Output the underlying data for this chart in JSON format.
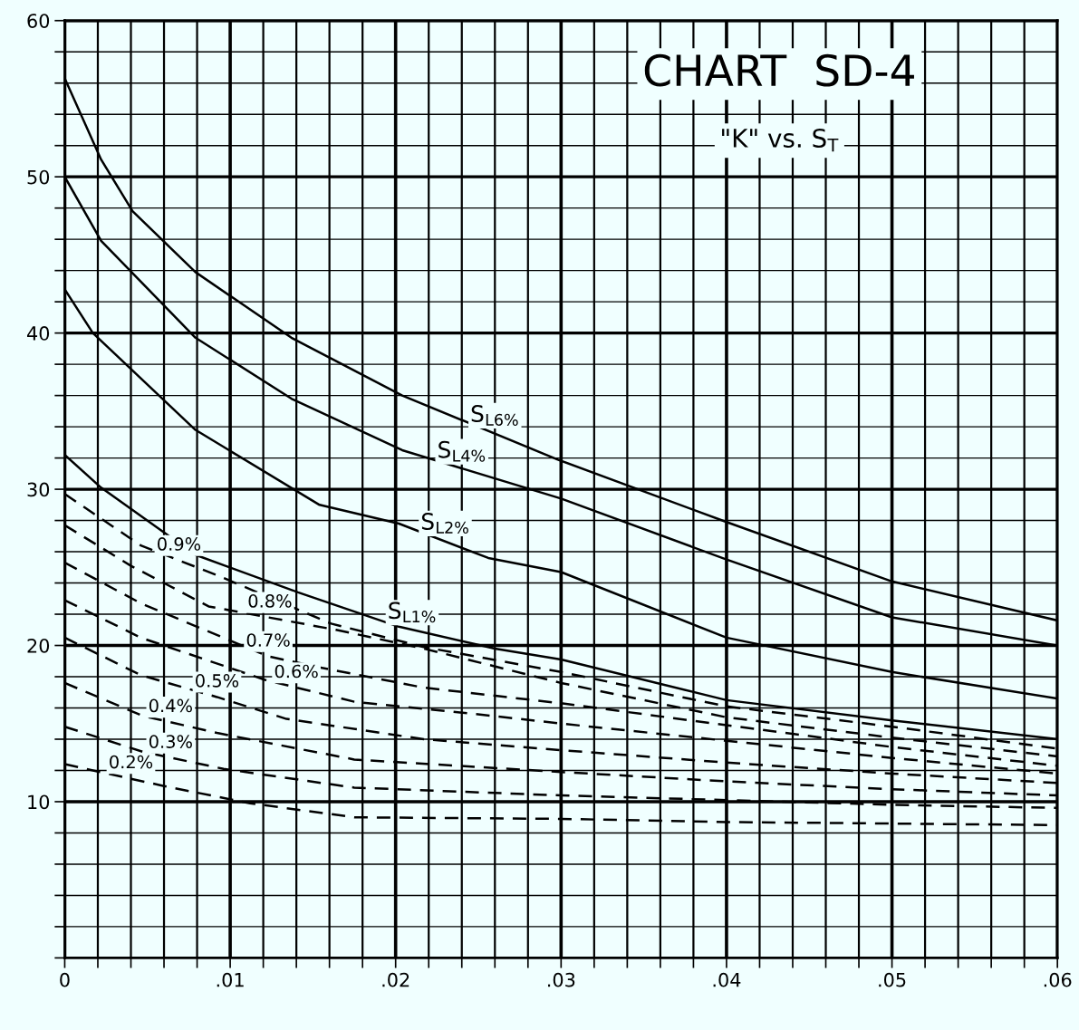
{
  "chart_data": {
    "type": "line",
    "title": "CHART  SD-4",
    "subtitle": "\"K\" vs. S$_{T}$",
    "grid": true,
    "marker": "none",
    "xlim": [
      0,
      0.06
    ],
    "ylim": [
      0,
      60
    ],
    "xticks": [
      0,
      {
        "value": 0.002,
        "label": null
      },
      {
        "value": 0.004,
        "label": null
      },
      {
        "value": 0.006,
        "label": null
      },
      {
        "value": 0.008,
        "label": null
      },
      {
        "value": 0.01,
        "label": ".01"
      },
      {
        "value": 0.012,
        "label": null
      },
      {
        "value": 0.014,
        "label": null
      },
      {
        "value": 0.016,
        "label": null
      },
      {
        "value": 0.018,
        "label": null
      },
      {
        "value": 0.02,
        "label": ".02"
      },
      {
        "value": 0.022,
        "label": null
      },
      {
        "value": 0.024,
        "label": null
      },
      {
        "value": 0.026,
        "label": null
      },
      {
        "value": 0.028,
        "label": null
      },
      {
        "value": 0.03,
        "label": ".03"
      },
      {
        "value": 0.032,
        "label": null
      },
      {
        "value": 0.034,
        "label": null
      },
      {
        "value": 0.036,
        "label": null
      },
      {
        "value": 0.038,
        "label": null
      },
      {
        "value": 0.04,
        "label": ".04"
      },
      {
        "value": 0.042,
        "label": null
      },
      {
        "value": 0.044,
        "label": null
      },
      {
        "value": 0.046,
        "label": null
      },
      {
        "value": 0.048,
        "label": null
      },
      {
        "value": 0.05,
        "label": ".05"
      },
      {
        "value": 0.052,
        "label": null
      },
      {
        "value": 0.054,
        "label": null
      },
      {
        "value": 0.056,
        "label": null
      },
      {
        "value": 0.058,
        "label": null
      },
      {
        "value": 0.06,
        "label": ".06"
      }
    ],
    "yticks": [
      {
        "value": 0,
        "label": null
      },
      {
        "value": 2,
        "label": null
      },
      {
        "value": 4,
        "label": null
      },
      {
        "value": 6,
        "label": null
      },
      {
        "value": 8,
        "label": null
      },
      10,
      {
        "value": 12,
        "label": null
      },
      {
        "value": 14,
        "label": null
      },
      {
        "value": 16,
        "label": null
      },
      {
        "value": 18,
        "label": null
      },
      20,
      {
        "value": 22,
        "label": null
      },
      {
        "value": 24,
        "label": null
      },
      {
        "value": 26,
        "label": null
      },
      {
        "value": 28,
        "label": null
      },
      30,
      {
        "value": 32,
        "label": null
      },
      {
        "value": 34,
        "label": null
      },
      {
        "value": 36,
        "label": null
      },
      {
        "value": 38,
        "label": null
      },
      40,
      {
        "value": 42,
        "label": null
      },
      {
        "value": 44,
        "label": null
      },
      {
        "value": 46,
        "label": null
      },
      {
        "value": 48,
        "label": null
      },
      50,
      {
        "value": 52,
        "label": null
      },
      {
        "value": 54,
        "label": null
      },
      {
        "value": 56,
        "label": null
      },
      {
        "value": 58,
        "label": null
      },
      60
    ],
    "series": [
      {
        "color": "#000000",
        "line_style": "solid",
        "x": [
          0,
          0.0022,
          0.0041,
          0.0079,
          0.0137,
          0.0204,
          0.0298,
          0.04,
          0.05,
          0.06
        ],
        "values": [
          56.3,
          51.1,
          47.8,
          43.9,
          39.7,
          36.0,
          31.9,
          27.9,
          24.1,
          21.6
        ]
      },
      {
        "color": "#000000",
        "line_style": "solid",
        "x": [
          0,
          0.0022,
          0.0079,
          0.0137,
          0.0204,
          0.03,
          0.04,
          0.05,
          0.06
        ],
        "values": [
          50.0,
          45.9,
          39.7,
          35.8,
          32.5,
          29.4,
          25.5,
          21.8,
          20.0
        ]
      },
      {
        "color": "#000000",
        "line_style": "solid",
        "x": [
          0,
          0.0017,
          0.0079,
          0.0154,
          0.0202,
          0.0256,
          0.03,
          0.04,
          0.05,
          0.06
        ],
        "values": [
          42.8,
          40.0,
          33.8,
          29.0,
          27.8,
          25.6,
          24.7,
          20.5,
          18.3,
          16.6
        ]
      },
      {
        "color": "#000000",
        "line_style": "solid",
        "x": [
          0,
          0.0022,
          0.0079,
          0.0141,
          0.0202,
          0.026,
          0.03,
          0.04,
          0.05,
          0.06
        ],
        "values": [
          32.2,
          30.1,
          25.8,
          23.4,
          21.2,
          19.8,
          19.1,
          16.5,
          15.2,
          14.0
        ]
      },
      {
        "color": "#000000",
        "line_style": "dashed",
        "x": [
          0,
          0.0046,
          0.0092,
          0.0161,
          0.0217,
          0.03,
          0.04,
          0.05,
          0.06
        ],
        "values": [
          29.7,
          26.4,
          24.5,
          21.4,
          19.9,
          18.3,
          16.1,
          14.8,
          13.4
        ]
      },
      {
        "color": "#000000",
        "line_style": "dashed",
        "x": [
          0,
          0.004,
          0.0087,
          0.0164,
          0.0217,
          0.03,
          0.04,
          0.05,
          0.06
        ],
        "values": [
          27.7,
          25.1,
          22.5,
          21.0,
          19.8,
          17.6,
          15.4,
          14.1,
          12.9
        ]
      },
      {
        "color": "#000000",
        "line_style": "dashed",
        "x": [
          0,
          0.0046,
          0.0123,
          0.0154,
          0.0217,
          0.03,
          0.04,
          0.05,
          0.06
        ],
        "values": [
          25.3,
          22.7,
          19.3,
          18.6,
          17.3,
          16.3,
          14.9,
          13.5,
          12.3
        ]
      },
      {
        "color": "#000000",
        "line_style": "dashed",
        "x": [
          0,
          0.0046,
          0.0121,
          0.0175,
          0.0258,
          0.03,
          0.04,
          0.05,
          0.06
        ],
        "values": [
          22.9,
          20.5,
          17.8,
          16.4,
          15.5,
          15.0,
          13.9,
          12.8,
          11.8
        ]
      },
      {
        "color": "#000000",
        "line_style": "dashed",
        "x": [
          0,
          0.0046,
          0.0092,
          0.0134,
          0.0217,
          0.03,
          0.04,
          0.05,
          0.06
        ],
        "values": [
          20.5,
          18.1,
          16.7,
          15.3,
          14.0,
          13.3,
          12.5,
          11.8,
          11.2
        ]
      },
      {
        "color": "#000000",
        "line_style": "dashed",
        "x": [
          0,
          0.0047,
          0.0092,
          0.0175,
          0.03,
          0.04,
          0.05,
          0.06
        ],
        "values": [
          17.6,
          15.5,
          14.4,
          12.7,
          11.9,
          11.3,
          10.8,
          10.4
        ]
      },
      {
        "color": "#000000",
        "line_style": "dashed",
        "x": [
          0,
          0.0047,
          0.0096,
          0.0175,
          0.03,
          0.04,
          0.05,
          0.06
        ],
        "values": [
          14.8,
          13.2,
          12.1,
          10.9,
          10.4,
          10.1,
          9.8,
          9.6
        ]
      },
      {
        "color": "#000000",
        "line_style": "dashed",
        "x": [
          0,
          0.006,
          0.0112,
          0.0175,
          0.03,
          0.04,
          0.05,
          0.06
        ],
        "values": [
          12.4,
          11.0,
          9.9,
          9.0,
          8.9,
          8.7,
          8.6,
          8.5
        ]
      }
    ],
    "annotations": [
      {
        "text": "S$_{L6%}$",
        "x": 0.026,
        "y": 33.6
      },
      {
        "text": "S$_{L4%}$",
        "x": 0.024,
        "y": 31.3
      },
      {
        "text": "S$_{L2%}$",
        "x": 0.023,
        "y": 26.7
      },
      {
        "text": "S$_{L1%}$",
        "x": 0.021,
        "y": 21.0
      },
      {
        "text": "0.9%",
        "x": 0.0069,
        "y": 25.45
      },
      {
        "text": "0.8%",
        "x": 0.0124,
        "y": 21.8
      },
      {
        "text": "0.7%",
        "x": 0.0123,
        "y": 19.3
      },
      {
        "text": "0.6%",
        "x": 0.014,
        "y": 17.3
      },
      {
        "text": "0.5%",
        "x": 0.0092,
        "y": 16.7
      },
      {
        "text": "0.4%",
        "x": 0.0064,
        "y": 15.1
      },
      {
        "text": "0.3%",
        "x": 0.0064,
        "y": 12.8
      },
      {
        "text": "0.2%",
        "x": 0.004,
        "y": 11.5
      }
    ]
  }
}
